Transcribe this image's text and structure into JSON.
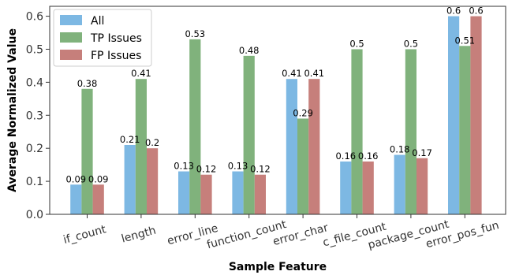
{
  "chart_data": {
    "type": "bar",
    "xlabel": "Sample Feature",
    "ylabel": "Average Normalized Value",
    "ylim": [
      0,
      0.63
    ],
    "yticks": [
      0.0,
      0.1,
      0.2,
      0.3,
      0.4,
      0.5,
      0.6
    ],
    "ytick_labels": [
      "0.0",
      "0.1",
      "0.2",
      "0.3",
      "0.4",
      "0.5",
      "0.6"
    ],
    "categories": [
      "if_count",
      "length",
      "error_line",
      "function_count",
      "error_char",
      "c_file_count",
      "package_count",
      "error_pos_fun"
    ],
    "series": [
      {
        "name": "All",
        "color": "#7db8e3",
        "values": [
          0.09,
          0.21,
          0.13,
          0.13,
          0.41,
          0.16,
          0.18,
          0.6
        ],
        "labels": [
          "0.09",
          "0.21",
          "0.13",
          "0.13",
          "0.41",
          "0.16",
          "0.18",
          "0.6"
        ]
      },
      {
        "name": "TP Issues",
        "color": "#80b27c",
        "values": [
          0.38,
          0.41,
          0.53,
          0.48,
          0.29,
          0.5,
          0.5,
          0.51
        ],
        "labels": [
          "0.38",
          "0.41",
          "0.53",
          "0.48",
          "0.29",
          "0.5",
          "0.5",
          "0.51"
        ]
      },
      {
        "name": "FP Issues",
        "color": "#c67f7b",
        "values": [
          0.09,
          0.2,
          0.12,
          0.12,
          0.41,
          0.16,
          0.17,
          0.6
        ],
        "labels": [
          "0.09",
          "0.2",
          "0.12",
          "0.12",
          "0.41",
          "0.16",
          "0.17",
          "0.6"
        ]
      }
    ],
    "legend_position": "top-left",
    "grid": false
  }
}
